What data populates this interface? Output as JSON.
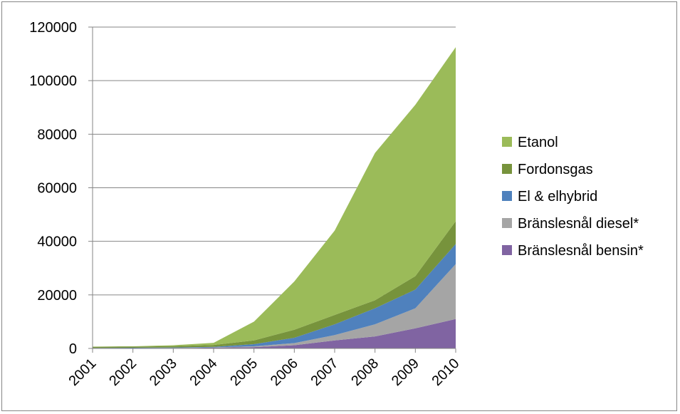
{
  "chart_data": {
    "type": "area",
    "stacked": true,
    "categories": [
      "2001",
      "2002",
      "2003",
      "2004",
      "2005",
      "2006",
      "2007",
      "2008",
      "2009",
      "2010"
    ],
    "ylim": [
      0,
      120000
    ],
    "yticks": [
      "0",
      "20000",
      "40000",
      "60000",
      "80000",
      "100000",
      "120000"
    ],
    "grid": "horizontal",
    "legend_position": "right",
    "series": [
      {
        "name": "Bränslesnål bensin*",
        "color": "#8064A2",
        "values": [
          100,
          100,
          150,
          300,
          500,
          1200,
          3000,
          4500,
          7500,
          11000
        ]
      },
      {
        "name": "Bränslesnål diesel*",
        "color": "#A5A5A5",
        "values": [
          50,
          50,
          50,
          100,
          300,
          800,
          2000,
          4500,
          7500,
          20500
        ]
      },
      {
        "name": "El & elhybrid",
        "color": "#4F81BD",
        "values": [
          50,
          100,
          150,
          200,
          800,
          2000,
          4000,
          6000,
          7000,
          7500
        ]
      },
      {
        "name": "Fordonsgas",
        "color": "#77933C",
        "values": [
          400,
          450,
          500,
          700,
          1400,
          3000,
          3500,
          3000,
          5000,
          8500
        ]
      },
      {
        "name": "Etanol",
        "color": "#9BBB59",
        "values": [
          100,
          100,
          350,
          800,
          7000,
          18000,
          31500,
          55000,
          64000,
          65000
        ]
      }
    ]
  }
}
